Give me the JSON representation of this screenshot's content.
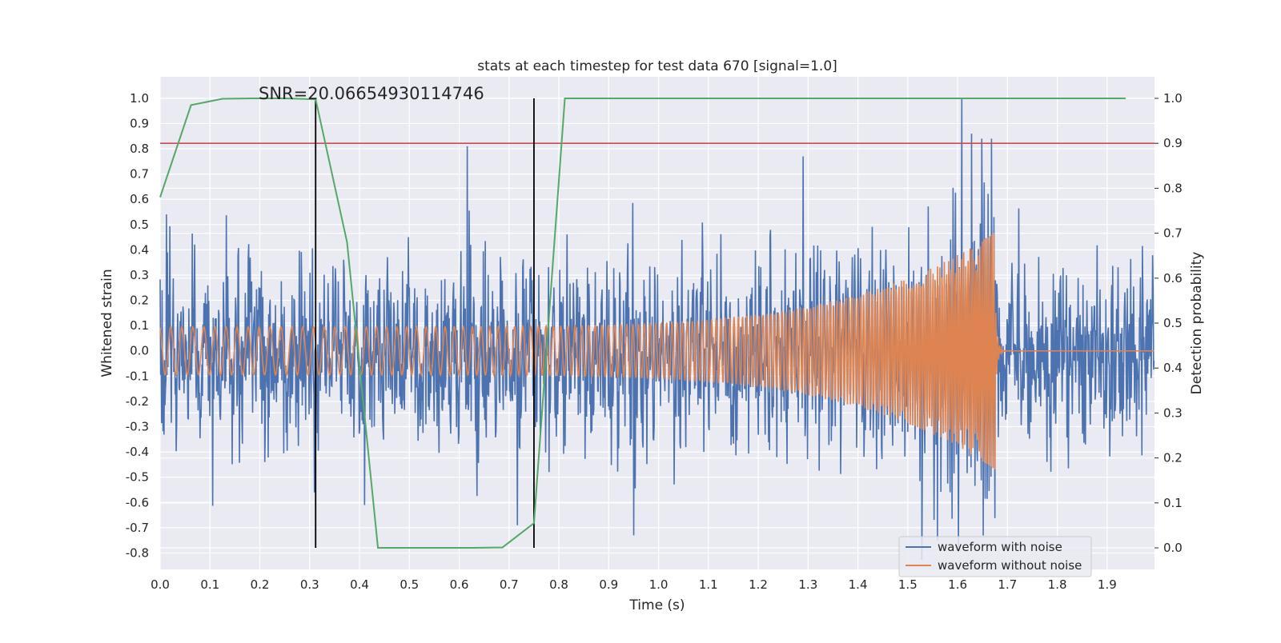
{
  "chart_data": {
    "type": "line",
    "title": "stats at each timestep for test data 670 [signal=1.0]",
    "xlabel": "Time (s)",
    "ylabel_left": "Whitened strain",
    "ylabel_right": "Detection probability",
    "xlim": [
      0.0,
      1.995
    ],
    "ylim_left": [
      -0.865,
      1.085
    ],
    "ylim_right": [
      -0.048,
      1.048
    ],
    "x_ticks": [
      "0.0",
      "0.1",
      "0.2",
      "0.3",
      "0.4",
      "0.5",
      "0.6",
      "0.7",
      "0.8",
      "0.9",
      "1.0",
      "1.1",
      "1.2",
      "1.3",
      "1.4",
      "1.5",
      "1.6",
      "1.7",
      "1.8",
      "1.9"
    ],
    "y_ticks_left": [
      "-0.8",
      "-0.7",
      "-0.6",
      "-0.5",
      "-0.4",
      "-0.3",
      "-0.2",
      "-0.1",
      "0.0",
      "0.1",
      "0.2",
      "0.3",
      "0.4",
      "0.5",
      "0.6",
      "0.7",
      "0.8",
      "0.9",
      "1.0"
    ],
    "y_ticks_right": [
      "0.0",
      "0.1",
      "0.2",
      "0.3",
      "0.4",
      "0.5",
      "0.6",
      "0.7",
      "0.8",
      "0.9",
      "1.0"
    ],
    "grid": true,
    "legend_position": "lower-right",
    "annotation": "SNR=20.06654930114746",
    "series": [
      {
        "name": "waveform with noise",
        "axis": "left",
        "color": "#4c72b0",
        "description_points": {
          "noise_std": 0.17,
          "peaks": [
            {
              "x": 0.013,
              "y": 0.54
            },
            {
              "x": 0.31,
              "y": -0.56
            },
            {
              "x": 0.41,
              "y": -0.61
            },
            {
              "x": 0.616,
              "y": 0.81
            },
            {
              "x": 0.717,
              "y": -0.69
            },
            {
              "x": 0.95,
              "y": -0.73
            },
            {
              "x": 1.29,
              "y": 0.77
            },
            {
              "x": 1.56,
              "y": -0.75
            },
            {
              "x": 1.608,
              "y": 1.0
            },
            {
              "x": 1.628,
              "y": 0.86
            },
            {
              "x": 1.648,
              "y": 0.84
            },
            {
              "x": 1.668,
              "y": 0.84
            }
          ]
        }
      },
      {
        "name": "waveform without noise",
        "axis": "left",
        "color": "#dd8452",
        "chirp": {
          "t_merge": 1.675,
          "amplitude_start": 0.095,
          "amplitude_max": 0.47,
          "frequency_start_hz": 45,
          "frequency_max_hz": 260,
          "value_after_merge": 0.0
        }
      },
      {
        "name": "detection probability",
        "axis": "right",
        "color": "#55a868",
        "x": [
          0.0,
          0.062,
          0.125,
          0.187,
          0.25,
          0.312,
          0.375,
          0.437,
          0.5,
          0.562,
          0.625,
          0.687,
          0.75,
          0.812,
          0.875,
          0.937,
          1.0,
          1.25,
          1.5,
          1.75,
          1.937
        ],
        "y": [
          0.78,
          0.985,
          0.999,
          1.0,
          1.0,
          0.998,
          0.68,
          0.0,
          0.0,
          0.0,
          0.0,
          0.001,
          0.055,
          1.0,
          1.0,
          1.0,
          1.0,
          1.0,
          1.0,
          1.0,
          1.0
        ]
      }
    ],
    "threshold_line": {
      "axis": "right",
      "y": 0.9,
      "color": "#c44e52"
    },
    "vertical_lines": [
      {
        "x": 0.312,
        "y_from": 0.0,
        "y_to": 1.0,
        "axis": "right",
        "color": "#000000"
      },
      {
        "x": 0.75,
        "y_from": 0.0,
        "y_to": 1.0,
        "axis": "right",
        "color": "#000000"
      }
    ],
    "colors": {
      "plot_background": "#eaeaf2",
      "grid": "#ffffff"
    }
  }
}
